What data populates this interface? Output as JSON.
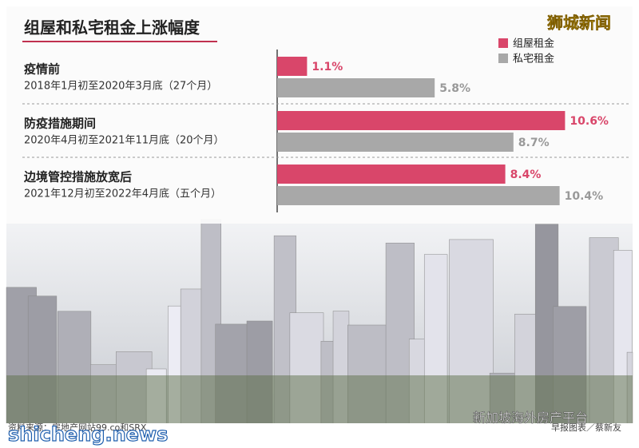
{
  "chart_data": {
    "type": "bar",
    "orientation": "horizontal",
    "title": "组屋和私宅租金上涨幅度",
    "categories": [
      "疫情前",
      "防疫措施期间",
      "边境管控措施放宽后"
    ],
    "category_periods": [
      "2018年1月初至2020年3月底（27个月）",
      "2020年4月初至2021年11月底（20个月）",
      "2021年12月初至2022年4月底（五个月）"
    ],
    "series": [
      {
        "name": "组屋租金",
        "color": "#d9466a",
        "values": [
          1.1,
          10.6,
          8.4
        ],
        "value_labels": [
          "1.1%",
          "10.6%",
          "8.4%"
        ]
      },
      {
        "name": "私宅租金",
        "color": "#a8a8a8",
        "values": [
          5.8,
          8.7,
          10.4
        ],
        "value_labels": [
          "5.8%",
          "8.7%",
          "10.4%"
        ]
      }
    ],
    "source": "资料来源：房地产网站99.co和SRX",
    "credit": "早报图表／蔡新友",
    "watermarks": [
      "狮城新闻",
      "shicheng.news",
      "新加坡海外房产平台"
    ]
  }
}
